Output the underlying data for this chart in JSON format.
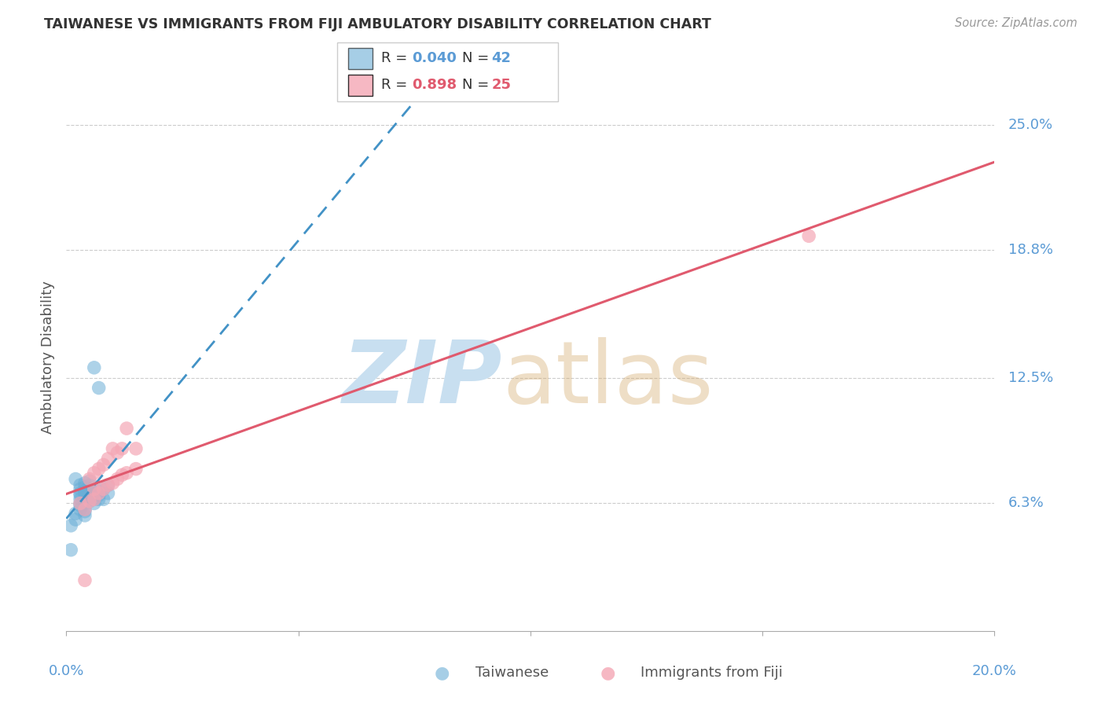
{
  "title": "TAIWANESE VS IMMIGRANTS FROM FIJI AMBULATORY DISABILITY CORRELATION CHART",
  "source": "Source: ZipAtlas.com",
  "ylabel": "Ambulatory Disability",
  "ytick_labels": [
    "6.3%",
    "12.5%",
    "18.8%",
    "25.0%"
  ],
  "ytick_values": [
    0.063,
    0.125,
    0.188,
    0.25
  ],
  "xlim": [
    0.0,
    0.2
  ],
  "ylim": [
    0.0,
    0.27
  ],
  "legend_r1": "R = 0.040",
  "legend_n1": "N = 42",
  "legend_r2": "R = 0.898",
  "legend_n2": "N = 25",
  "taiwanese_color": "#6baed6",
  "fiji_color": "#f4a7b5",
  "taiwanese_line_color": "#4292c6",
  "fiji_line_color": "#e05a6e",
  "background_color": "#ffffff",
  "taiwanese_x": [
    0.001,
    0.002,
    0.002,
    0.003,
    0.003,
    0.003,
    0.003,
    0.003,
    0.003,
    0.004,
    0.004,
    0.004,
    0.004,
    0.004,
    0.004,
    0.004,
    0.004,
    0.005,
    0.005,
    0.005,
    0.005,
    0.005,
    0.005,
    0.006,
    0.006,
    0.006,
    0.006,
    0.006,
    0.007,
    0.007,
    0.007,
    0.007,
    0.008,
    0.008,
    0.009,
    0.009,
    0.001,
    0.002,
    0.003,
    0.003,
    0.004,
    0.005
  ],
  "taiwanese_y": [
    0.04,
    0.058,
    0.075,
    0.062,
    0.067,
    0.068,
    0.07,
    0.072,
    0.065,
    0.059,
    0.063,
    0.065,
    0.068,
    0.069,
    0.071,
    0.073,
    0.06,
    0.064,
    0.066,
    0.068,
    0.07,
    0.072,
    0.074,
    0.063,
    0.065,
    0.068,
    0.07,
    0.13,
    0.065,
    0.067,
    0.069,
    0.12,
    0.065,
    0.07,
    0.068,
    0.072,
    0.052,
    0.055,
    0.06,
    0.063,
    0.057,
    0.066
  ],
  "fiji_x": [
    0.003,
    0.004,
    0.005,
    0.005,
    0.006,
    0.006,
    0.007,
    0.007,
    0.008,
    0.008,
    0.009,
    0.009,
    0.01,
    0.01,
    0.011,
    0.011,
    0.012,
    0.012,
    0.013,
    0.013,
    0.015,
    0.015,
    0.004,
    0.16,
    0.006
  ],
  "fiji_y": [
    0.063,
    0.06,
    0.064,
    0.075,
    0.065,
    0.078,
    0.068,
    0.08,
    0.07,
    0.082,
    0.072,
    0.085,
    0.073,
    0.09,
    0.075,
    0.088,
    0.077,
    0.09,
    0.078,
    0.1,
    0.08,
    0.09,
    0.025,
    0.195,
    0.07
  ]
}
